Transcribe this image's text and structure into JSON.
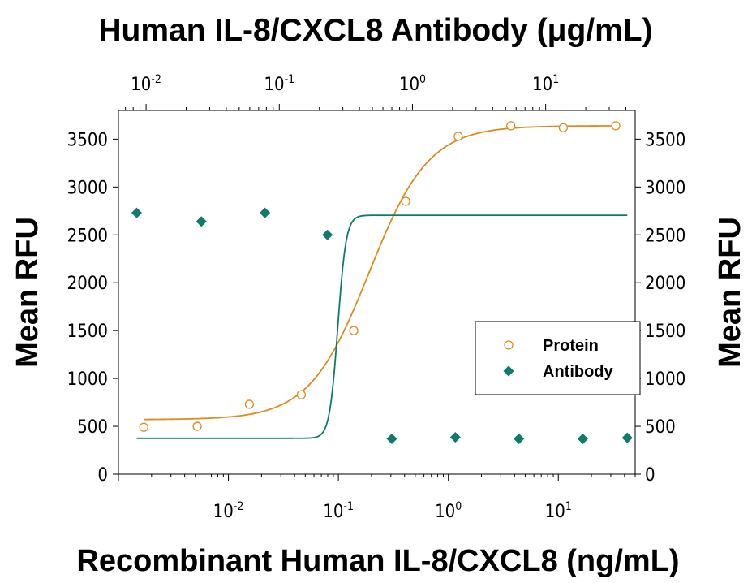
{
  "chart_data": {
    "type": "scatter",
    "title": "Human IL-8/CXCL8 Antibody (μg/mL)",
    "xlabel": "Recombinant Human IL-8/CXCL8 (ng/mL)",
    "ylabel_left": "Mean RFU",
    "ylabel_right": "Mean RFU",
    "x_scale": "log",
    "x_bottom_range": [
      0.001,
      50
    ],
    "x_top_range": [
      0.0062,
      47
    ],
    "ylim": [
      0,
      3800
    ],
    "y_ticks": [
      "0",
      "500",
      "1000",
      "1500",
      "2000",
      "2500",
      "3000",
      "3500"
    ],
    "x_bottom_ticks": [
      {
        "value": 0.01,
        "base": "10",
        "exp": "-2"
      },
      {
        "value": 0.1,
        "base": "10",
        "exp": "-1"
      },
      {
        "value": 1,
        "base": "10",
        "exp": "0"
      },
      {
        "value": 10,
        "base": "10",
        "exp": "1"
      }
    ],
    "x_top_ticks": [
      {
        "value": 0.01,
        "base": "10",
        "exp": "-2"
      },
      {
        "value": 0.1,
        "base": "10",
        "exp": "-1"
      },
      {
        "value": 1,
        "base": "10",
        "exp": "0"
      },
      {
        "value": 10,
        "base": "10",
        "exp": "1"
      }
    ],
    "legend_position": "right-middle",
    "series": [
      {
        "name": "Protein",
        "axis": "bottom",
        "marker": "open-circle",
        "color": "#E08A1E",
        "points": [
          {
            "x": 0.0017,
            "y": 490
          },
          {
            "x": 0.0052,
            "y": 500
          },
          {
            "x": 0.0155,
            "y": 730
          },
          {
            "x": 0.046,
            "y": 830
          },
          {
            "x": 0.138,
            "y": 1500
          },
          {
            "x": 0.41,
            "y": 2850
          },
          {
            "x": 1.23,
            "y": 3530
          },
          {
            "x": 3.7,
            "y": 3640
          },
          {
            "x": 11.1,
            "y": 3620
          },
          {
            "x": 33.3,
            "y": 3640
          }
        ],
        "fit": {
          "bottom": 570,
          "top": 3640,
          "ec50": 0.19,
          "hill": 1.6
        }
      },
      {
        "name": "Antibody",
        "axis": "top",
        "marker": "filled-diamond",
        "color": "#0F7B6C",
        "points": [
          {
            "x": 0.0085,
            "y": 2730
          },
          {
            "x": 0.026,
            "y": 2640
          },
          {
            "x": 0.078,
            "y": 2730
          },
          {
            "x": 0.23,
            "y": 2500
          },
          {
            "x": 0.7,
            "y": 370
          },
          {
            "x": 2.1,
            "y": 385
          },
          {
            "x": 6.3,
            "y": 370
          },
          {
            "x": 19,
            "y": 370
          },
          {
            "x": 41,
            "y": 380
          }
        ],
        "fit": {
          "bottom": 375,
          "top": 2705,
          "ec50": 0.275,
          "hill": 14
        }
      }
    ]
  }
}
